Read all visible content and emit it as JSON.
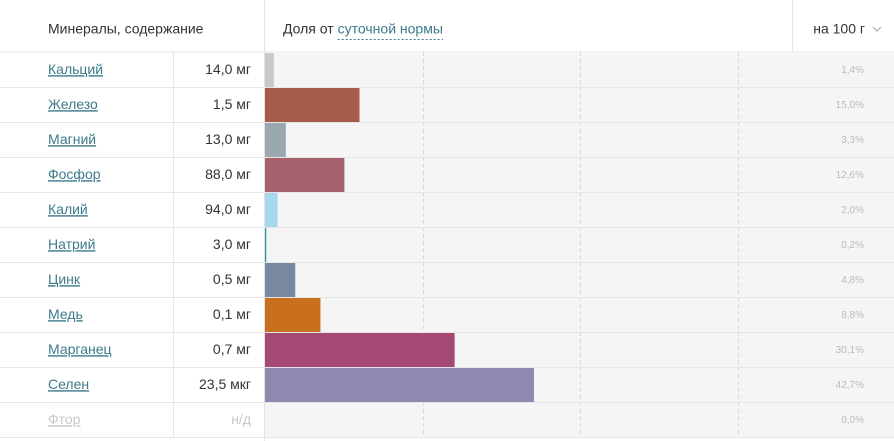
{
  "header": {
    "name_column": "Минералы, содержание",
    "share_prefix": "Доля от",
    "share_link": "суточной нормы",
    "unit": "на 100 г"
  },
  "chart_data": {
    "type": "hbar",
    "categories": [
      "Кальций",
      "Железо",
      "Магний",
      "Фосфор",
      "Калий",
      "Натрий",
      "Цинк",
      "Медь",
      "Марганец",
      "Селен",
      "Фтор"
    ],
    "amounts": [
      "14,0 мг",
      "1,5 мг",
      "13,0 мг",
      "88,0 мг",
      "94,0 мг",
      "3,0 мг",
      "0,5 мг",
      "0,1 мг",
      "0,7 мг",
      "23,5 мкг",
      "н/д"
    ],
    "values": [
      1.4,
      15.0,
      3.3,
      12.6,
      2.0,
      0.2,
      4.8,
      8.8,
      30.1,
      42.7,
      0.0
    ],
    "value_labels": [
      "1,4%",
      "15,0%",
      "3,3%",
      "12,6%",
      "2,0%",
      "0,2%",
      "4,8%",
      "8,8%",
      "30,1%",
      "42,7%",
      "0,0%"
    ],
    "colors": [
      "#c8c8c8",
      "#a65c4a",
      "#9aa8b0",
      "#a6606e",
      "#a8d8f0",
      "#2a9a9a",
      "#7888a0",
      "#c8701e",
      "#a44876",
      "#9088b0",
      "#cccccc"
    ],
    "xlim": [
      0,
      100
    ],
    "xticks": [
      25,
      50,
      75
    ],
    "grid": true
  }
}
